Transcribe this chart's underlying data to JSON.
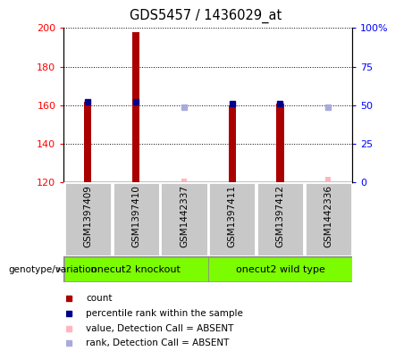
{
  "title": "GDS5457 / 1436029_at",
  "samples": [
    "GSM1397409",
    "GSM1397410",
    "GSM1442337",
    "GSM1397411",
    "GSM1397412",
    "GSM1442336"
  ],
  "groups": [
    {
      "label": "onecut2 knockout",
      "color": "#7CFC00",
      "sample_indices": [
        0,
        1,
        2
      ]
    },
    {
      "label": "onecut2 wild type",
      "color": "#7CFC00",
      "sample_indices": [
        3,
        4,
        5
      ]
    }
  ],
  "count_values": [
    162,
    198,
    null,
    160,
    161,
    null
  ],
  "count_color": "#AA0000",
  "absent_count_values": [
    null,
    null,
    122,
    null,
    null,
    123
  ],
  "absent_count_color": "#FFB6C1",
  "percentile_values": [
    52,
    52,
    null,
    51,
    51,
    null
  ],
  "percentile_color": "#00008B",
  "absent_percentile_values": [
    null,
    null,
    49,
    null,
    null,
    49
  ],
  "absent_percentile_color": "#AAAADD",
  "ylim_left": [
    120,
    200
  ],
  "ylim_right": [
    0,
    100
  ],
  "yticks_left": [
    120,
    140,
    160,
    180,
    200
  ],
  "yticks_right": [
    0,
    25,
    50,
    75,
    100
  ],
  "ytick_right_labels": [
    "0",
    "25",
    "50",
    "75",
    "100%"
  ],
  "bar_width": 0.15,
  "sample_box_color": "#C8C8C8",
  "legend_items": [
    {
      "label": "count",
      "color": "#AA0000"
    },
    {
      "label": "percentile rank within the sample",
      "color": "#00008B"
    },
    {
      "label": "value, Detection Call = ABSENT",
      "color": "#FFB6C1"
    },
    {
      "label": "rank, Detection Call = ABSENT",
      "color": "#AAAADD"
    }
  ]
}
